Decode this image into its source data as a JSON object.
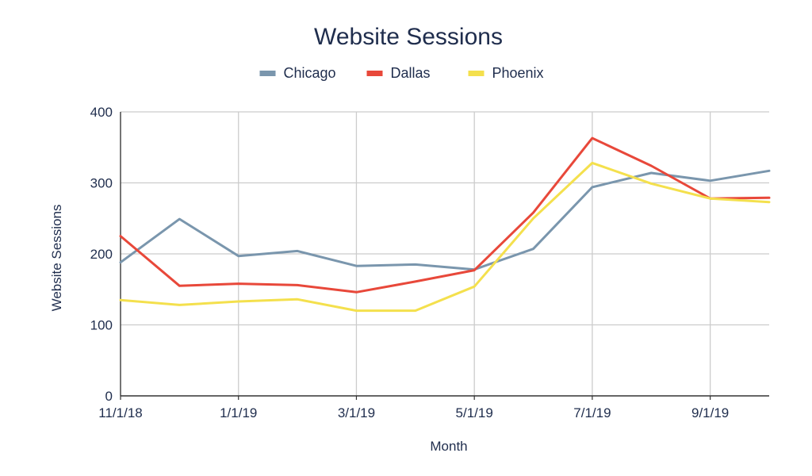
{
  "chart_data": {
    "type": "line",
    "title": "Website Sessions",
    "xlabel": "Month",
    "ylabel": "Website Sessions",
    "x": [
      "11/1/18",
      "12/1/18",
      "1/1/19",
      "2/1/19",
      "3/1/19",
      "4/1/19",
      "5/1/19",
      "6/1/19",
      "7/1/19",
      "8/1/19",
      "9/1/19",
      "10/1/19"
    ],
    "x_tick_labels": [
      "11/1/18",
      "1/1/19",
      "3/1/19",
      "5/1/19",
      "7/1/19",
      "9/1/19"
    ],
    "y_ticks": [
      "0",
      "100",
      "200",
      "300",
      "400"
    ],
    "ylim": [
      0,
      400
    ],
    "grid": true,
    "legend_position": "top",
    "series": [
      {
        "name": "Chicago",
        "color": "#7a96ad",
        "values": [
          188,
          249,
          197,
          204,
          183,
          185,
          178,
          207,
          294,
          314,
          303,
          317
        ]
      },
      {
        "name": "Dallas",
        "color": "#e8483a",
        "values": [
          225,
          155,
          158,
          156,
          146,
          161,
          177,
          258,
          363,
          324,
          278,
          279
        ]
      },
      {
        "name": "Phoenix",
        "color": "#f4e04d",
        "values": [
          135,
          128,
          133,
          136,
          120,
          120,
          154,
          250,
          328,
          299,
          278,
          273
        ]
      }
    ]
  }
}
